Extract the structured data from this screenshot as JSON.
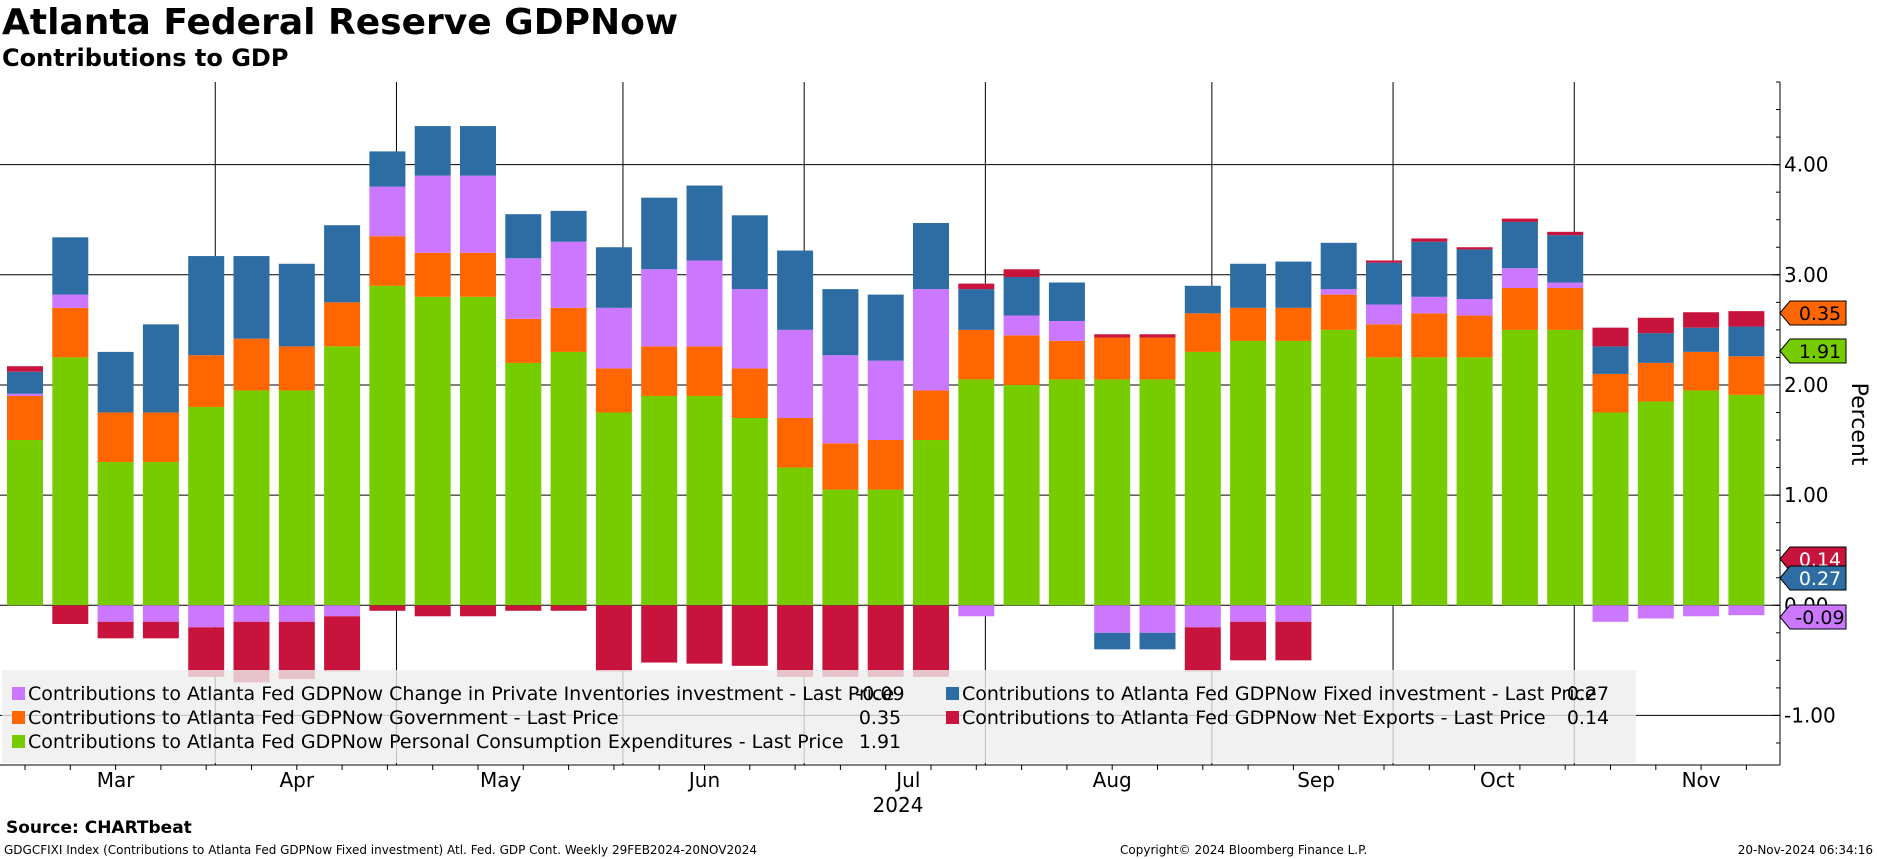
{
  "title": "Atlanta Federal Reserve GDPNow",
  "subtitle": "Contributions to GDP",
  "source": "Source: CHARTbeat",
  "footer": {
    "left": "GDGCFIXI Index (Contributions to Atlanta Fed GDPNow Fixed investment) Atl. Fed. GDP Cont.  Weekly 29FEB2024-20NOV2024",
    "copyright": "Copyright© 2024 Bloomberg Finance L.P.",
    "timestamp": "20-Nov-2024 06:34:16"
  },
  "chart_data": {
    "type": "bar",
    "stacked": true,
    "ylabel": "Percent",
    "ylim": [
      -1.45,
      4.75
    ],
    "yticks": [
      -1.0,
      0.0,
      1.0,
      2.0,
      3.0,
      4.0
    ],
    "ytick_labels": [
      "-1.00",
      "0.00",
      "1.00",
      "2.00",
      "3.00",
      "4.00"
    ],
    "xlabel": "2024",
    "month_labels": [
      "Mar",
      "Apr",
      "May",
      "Jun",
      "Jul",
      "Aug",
      "Sep",
      "Oct",
      "Nov"
    ],
    "month_label_week": [
      2,
      6,
      10.5,
      15,
      19.5,
      24,
      28.5,
      32.5,
      37
    ],
    "month_boundary_week": [
      4.2,
      8.2,
      13.2,
      17.2,
      21.2,
      26.2,
      30.2,
      34.2
    ],
    "categories": [
      "2024-02-29",
      "2024-03-06",
      "2024-03-13",
      "2024-03-20",
      "2024-03-27",
      "2024-04-03",
      "2024-04-10",
      "2024-04-17",
      "2024-04-24",
      "2024-05-01",
      "2024-05-08",
      "2024-05-15",
      "2024-05-22",
      "2024-05-29",
      "2024-06-05",
      "2024-06-12",
      "2024-06-19",
      "2024-06-26",
      "2024-07-03",
      "2024-07-10",
      "2024-07-17",
      "2024-07-24",
      "2024-07-31",
      "2024-08-07",
      "2024-08-14",
      "2024-08-21",
      "2024-08-28",
      "2024-09-04",
      "2024-09-11",
      "2024-09-18",
      "2024-09-25",
      "2024-10-02",
      "2024-10-09",
      "2024-10-16",
      "2024-10-23",
      "2024-10-30",
      "2024-11-06",
      "2024-11-13",
      "2024-11-20"
    ],
    "series": [
      {
        "name": "Contributions to Atlanta Fed GDPNow Personal Consumption Expenditures - Last Price",
        "color": "#77cc00",
        "last": "1.91",
        "values": [
          1.5,
          2.25,
          1.3,
          1.3,
          1.8,
          1.95,
          1.95,
          2.35,
          2.9,
          2.8,
          2.8,
          2.2,
          2.3,
          1.75,
          1.9,
          1.9,
          1.7,
          1.25,
          1.05,
          1.05,
          1.5,
          2.05,
          2.0,
          2.05,
          2.05,
          2.05,
          2.3,
          2.4,
          2.4,
          2.5,
          2.25,
          2.25,
          2.25,
          2.5,
          2.5,
          1.75,
          1.85,
          1.95,
          1.91
        ]
      },
      {
        "name": "Contributions to Atlanta Fed GDPNow Government - Last Price",
        "color": "#ff6600",
        "last": "0.35",
        "values": [
          0.4,
          0.45,
          0.45,
          0.45,
          0.47,
          0.47,
          0.4,
          0.4,
          0.45,
          0.4,
          0.4,
          0.4,
          0.4,
          0.4,
          0.45,
          0.45,
          0.45,
          0.45,
          0.42,
          0.45,
          0.45,
          0.45,
          0.45,
          0.35,
          0.38,
          0.38,
          0.35,
          0.3,
          0.3,
          0.32,
          0.3,
          0.4,
          0.38,
          0.38,
          0.38,
          0.35,
          0.35,
          0.35,
          0.35
        ]
      },
      {
        "name": "Contributions to Atlanta Fed GDPNow Change in Private Inventories investment - Last Price",
        "color": "#cc77ff",
        "last": "-0.09",
        "values": [
          0.02,
          0.12,
          -0.15,
          -0.15,
          -0.2,
          -0.15,
          -0.15,
          -0.1,
          0.45,
          0.7,
          0.7,
          0.55,
          0.6,
          0.55,
          0.7,
          0.78,
          0.72,
          0.8,
          0.8,
          0.72,
          0.92,
          -0.1,
          0.18,
          0.18,
          -0.25,
          -0.25,
          -0.2,
          -0.15,
          -0.15,
          0.05,
          0.18,
          0.15,
          0.15,
          0.18,
          0.05,
          -0.15,
          -0.12,
          -0.1,
          -0.09
        ]
      },
      {
        "name": "Contributions to Atlanta Fed GDPNow Fixed investment - Last Price",
        "color": "#2e6da4",
        "last": "0.27",
        "values": [
          0.2,
          0.52,
          0.55,
          0.8,
          0.9,
          0.75,
          0.75,
          0.7,
          0.32,
          0.45,
          0.45,
          0.4,
          0.28,
          0.55,
          0.65,
          0.68,
          0.67,
          0.72,
          0.6,
          0.6,
          0.6,
          0.37,
          0.35,
          0.35,
          -0.15,
          -0.15,
          0.25,
          0.4,
          0.42,
          0.42,
          0.38,
          0.5,
          0.45,
          0.42,
          0.43,
          0.25,
          0.27,
          0.22,
          0.27
        ]
      },
      {
        "name": "Contributions to Atlanta Fed GDPNow Net Exports - Last Price",
        "color": "#c8143c",
        "last": "0.14",
        "values": [
          0.05,
          -0.17,
          -0.15,
          -0.15,
          -0.45,
          -0.55,
          -0.52,
          -0.5,
          -0.05,
          -0.1,
          -0.1,
          -0.05,
          -0.05,
          -0.6,
          -0.52,
          -0.53,
          -0.55,
          -0.65,
          -0.65,
          -0.65,
          -0.65,
          0.05,
          0.07,
          0.0,
          0.03,
          0.03,
          -0.4,
          -0.35,
          -0.35,
          0.0,
          0.02,
          0.03,
          0.02,
          0.03,
          0.03,
          0.17,
          0.14,
          0.14,
          0.14
        ]
      }
    ],
    "legend": [
      {
        "label": "Contributions to Atlanta Fed GDPNow Change in Private Inventories investment - Last Price",
        "value": "-0.09",
        "color": "#cc77ff"
      },
      {
        "label": "Contributions to Atlanta Fed GDPNow Fixed investment - Last Price",
        "value": "0.27",
        "color": "#2e6da4"
      },
      {
        "label": "Contributions to Atlanta Fed GDPNow Government - Last Price",
        "value": "0.35",
        "color": "#ff6600"
      },
      {
        "label": "Contributions to Atlanta Fed GDPNow Net Exports - Last Price",
        "value": "0.14",
        "color": "#c8143c"
      },
      {
        "label": "Contributions to Atlanta Fed GDPNow Personal Consumption Expenditures - Last Price",
        "value": "1.91",
        "color": "#77cc00"
      }
    ],
    "value_tags": [
      {
        "value": 0.35,
        "text": "0.35",
        "color": "#ff6600",
        "text_color": "#000000"
      },
      {
        "value": 1.91,
        "text": "1.91",
        "color": "#77cc00",
        "text_color": "#000000"
      },
      {
        "value": 0.14,
        "text": "0.14",
        "color": "#c8143c",
        "text_color": "#ffffff"
      },
      {
        "value": 0.27,
        "text": "0.27",
        "color": "#2e6da4",
        "text_color": "#ffffff"
      },
      {
        "value": -0.09,
        "text": "-0.09",
        "color": "#cc77ff",
        "text_color": "#000000"
      }
    ]
  }
}
